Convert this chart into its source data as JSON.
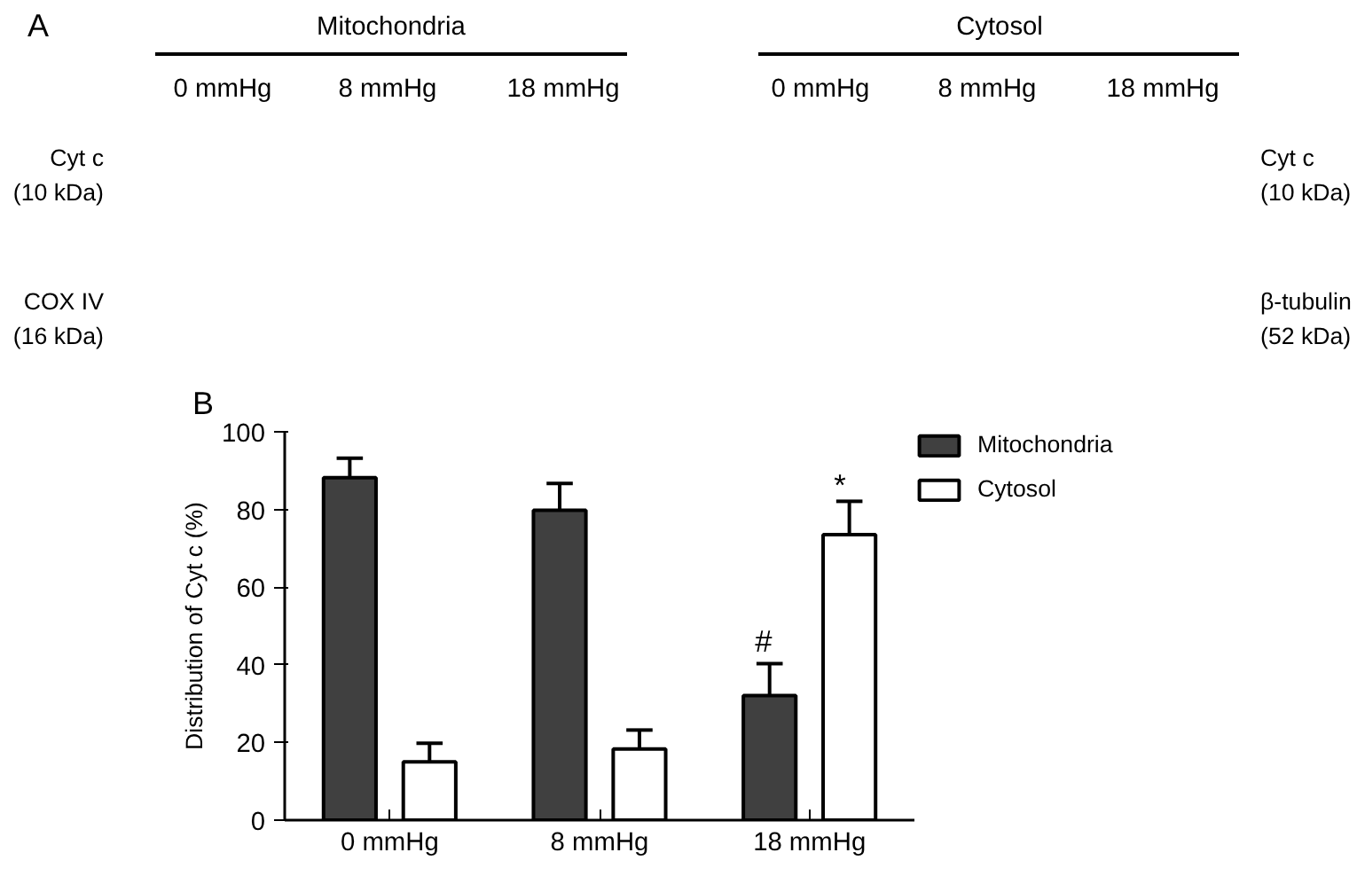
{
  "chart_data": {
    "type": "bar",
    "ylabel": "Distribution of Cyt c (%)",
    "categories": [
      "0 mmHg",
      "8 mmHg",
      "18 mmHg"
    ],
    "series": [
      {
        "name": "Mitochondria",
        "color": "#404040",
        "values": [
          88.2,
          79.8,
          32.1
        ],
        "errors": [
          [
            88.2,
            93.2
          ],
          [
            79.8,
            86.7
          ],
          [
            32.1,
            40.3
          ]
        ]
      },
      {
        "name": "Cytosol",
        "color": "#ffffff",
        "values": [
          15.0,
          18.3,
          73.5
        ],
        "errors": [
          [
            15.0,
            19.8
          ],
          [
            18.3,
            23.2
          ],
          [
            73.5,
            82.1
          ]
        ]
      }
    ],
    "ylim": [
      0,
      100
    ],
    "yticks": [
      0,
      20,
      40,
      60,
      80,
      100
    ],
    "grid": false,
    "legend": "right",
    "annotations": [
      "A",
      "Mitochondria",
      "Cytosol",
      "0 mmHg",
      "8 mmHg",
      "18 mmHg",
      "0 mmHg",
      "8 mmHg",
      "18 mmHg",
      "Cyt c\n(10 kDa)",
      "COX IV\n(16 kDa)",
      "Cyt c\n(10 kDa)",
      "β-tubulin\n(52 kDa)",
      "B",
      "#",
      "*"
    ]
  }
}
